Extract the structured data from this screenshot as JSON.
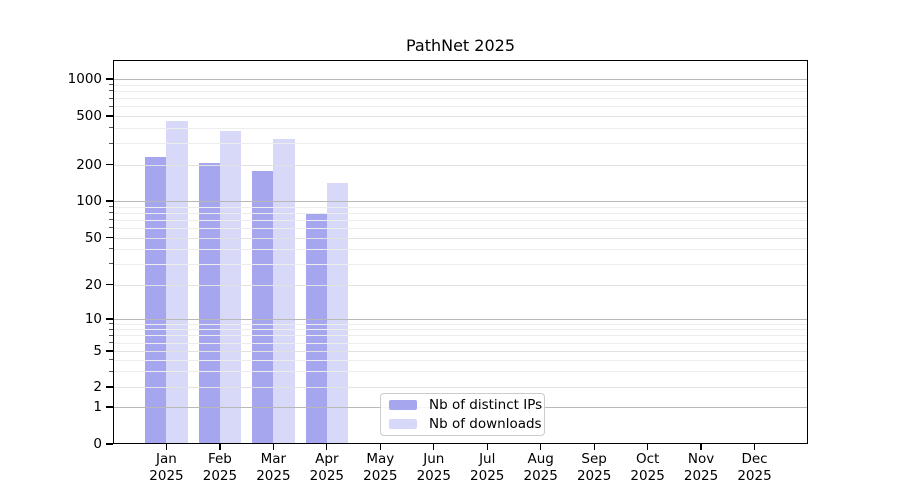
{
  "figure": {
    "title": "PathNet 2025"
  },
  "chart_data": {
    "type": "bar",
    "title": "PathNet 2025",
    "categories": [
      "Jan",
      "Feb",
      "Mar",
      "Apr",
      "May",
      "Jun",
      "Jul",
      "Aug",
      "Sep",
      "Oct",
      "Nov",
      "Dec"
    ],
    "category_year": "2025",
    "series": [
      {
        "name": "Nb of distinct IPs",
        "color": "#a6a6ef",
        "values": [
          230,
          205,
          178,
          80,
          null,
          null,
          null,
          null,
          null,
          null,
          null,
          null
        ]
      },
      {
        "name": "Nb of downloads",
        "color": "#d8d8f8",
        "values": [
          460,
          375,
          325,
          140,
          null,
          null,
          null,
          null,
          null,
          null,
          null,
          null
        ]
      }
    ],
    "xlabel": "",
    "ylabel": "",
    "yscale": "asinh-log (compressed near zero, includes 0)",
    "y_ticks": [
      0,
      1,
      2,
      5,
      10,
      20,
      50,
      100,
      200,
      500,
      1000
    ],
    "ylim": [
      0,
      1400
    ],
    "grid": "horizontal major + minor gridlines, drawn over bars",
    "legend_position": "inside lower-center of plot",
    "colors": {
      "major_grid": "#b8b8b8",
      "labeled_minor_grid": "#e2e2e2",
      "minor_grid": "#ededed",
      "spine": "#000000",
      "background": "#ffffff",
      "legend_border": "#cccccc"
    }
  }
}
